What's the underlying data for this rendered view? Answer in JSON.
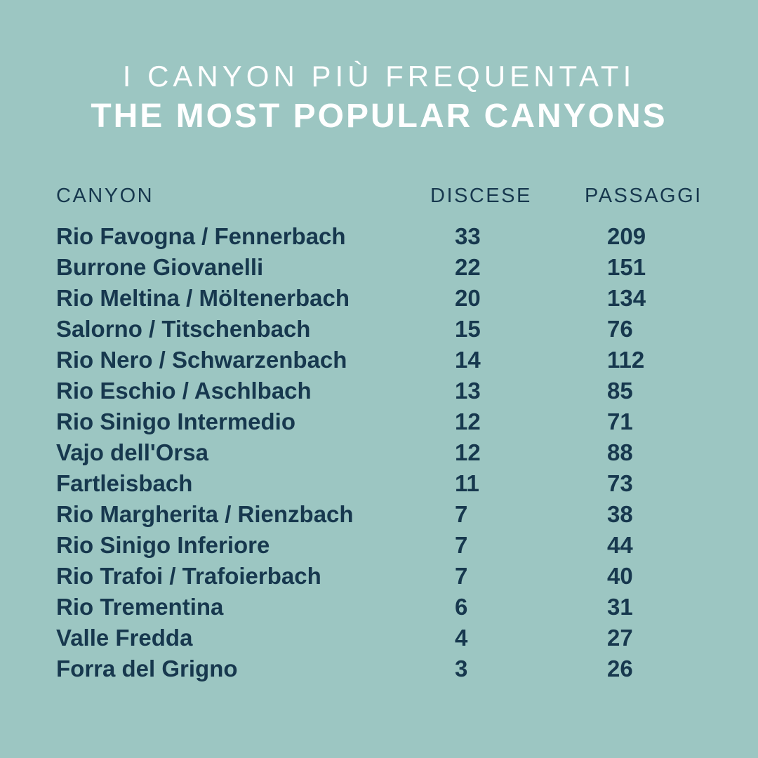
{
  "colors": {
    "background": "#9CC6C2",
    "text": "#17384E",
    "title": "#FFFFFF"
  },
  "title": {
    "line1": "I CANYON PIÙ FREQUENTATI",
    "line2": "THE MOST POPULAR CANYONS"
  },
  "table": {
    "headers": {
      "canyon": "CANYON",
      "discese": "DISCESE",
      "passaggi": "PASSAGGI"
    },
    "rows": [
      {
        "canyon": "Rio Favogna / Fennerbach",
        "discese": "33",
        "passaggi": "209"
      },
      {
        "canyon": "Burrone Giovanelli",
        "discese": "22",
        "passaggi": "151"
      },
      {
        "canyon": "Rio Meltina / Möltenerbach",
        "discese": "20",
        "passaggi": "134"
      },
      {
        "canyon": "Salorno / Titschenbach",
        "discese": "15",
        "passaggi": "76"
      },
      {
        "canyon": "Rio Nero / Schwarzenbach",
        "discese": "14",
        "passaggi": "112"
      },
      {
        "canyon": "Rio Eschio / Aschlbach",
        "discese": "13",
        "passaggi": "85"
      },
      {
        "canyon": "Rio Sinigo Intermedio",
        "discese": "12",
        "passaggi": "71"
      },
      {
        "canyon": "Vajo dell'Orsa",
        "discese": "12",
        "passaggi": "88"
      },
      {
        "canyon": "Fartleisbach",
        "discese": "11",
        "passaggi": "73"
      },
      {
        "canyon": "Rio Margherita / Rienzbach",
        "discese": "7",
        "passaggi": "38"
      },
      {
        "canyon": "Rio Sinigo Inferiore",
        "discese": "7",
        "passaggi": "44"
      },
      {
        "canyon": "Rio Trafoi / Trafoierbach",
        "discese": "7",
        "passaggi": "40"
      },
      {
        "canyon": "Rio Trementina",
        "discese": "6",
        "passaggi": "31"
      },
      {
        "canyon": "Valle Fredda",
        "discese": "4",
        "passaggi": "27"
      },
      {
        "canyon": "Forra del Grigno",
        "discese": "3",
        "passaggi": "26"
      }
    ]
  },
  "chart_data": {
    "type": "table",
    "title": "I CANYON PIÙ FREQUENTATI / THE MOST POPULAR CANYONS",
    "columns": [
      "CANYON",
      "DISCESE",
      "PASSAGGI"
    ],
    "rows": [
      [
        "Rio Favogna / Fennerbach",
        33,
        209
      ],
      [
        "Burrone Giovanelli",
        22,
        151
      ],
      [
        "Rio Meltina / Möltenerbach",
        20,
        134
      ],
      [
        "Salorno / Titschenbach",
        15,
        76
      ],
      [
        "Rio Nero / Schwarzenbach",
        14,
        112
      ],
      [
        "Rio Eschio / Aschlbach",
        13,
        85
      ],
      [
        "Rio Sinigo Intermedio",
        12,
        71
      ],
      [
        "Vajo dell'Orsa",
        12,
        88
      ],
      [
        "Fartleisbach",
        11,
        73
      ],
      [
        "Rio Margherita / Rienzbach",
        7,
        38
      ],
      [
        "Rio Sinigo Inferiore",
        7,
        44
      ],
      [
        "Rio Trafoi / Trafoierbach",
        7,
        40
      ],
      [
        "Rio Trementina",
        6,
        31
      ],
      [
        "Valle Fredda",
        4,
        27
      ],
      [
        "Forra del Grigno",
        3,
        26
      ]
    ]
  }
}
